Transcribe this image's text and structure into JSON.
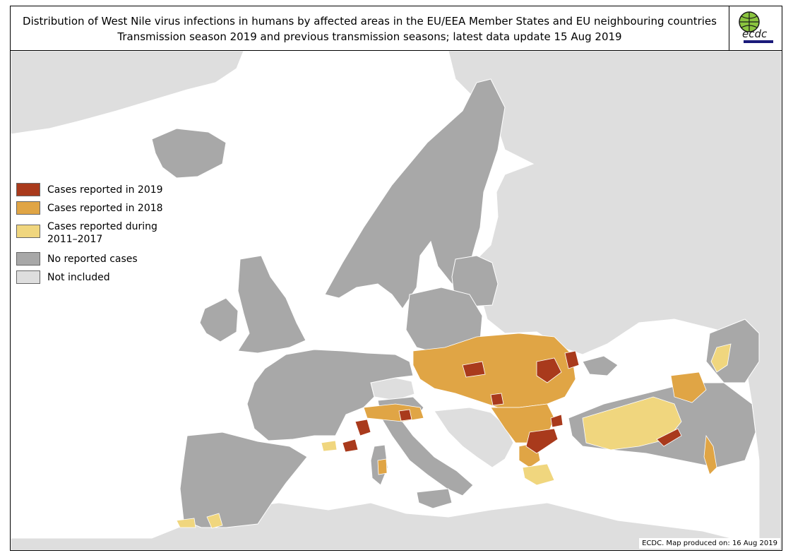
{
  "header": {
    "title_line1": "Distribution of West Nile virus infections in humans by affected areas in the EU/EEA Member States and EU neighbouring countries",
    "title_line2": "Transmission season 2019 and previous transmission seasons; latest data update 15 Aug 2019"
  },
  "logo": {
    "text": "ecdc",
    "icon": "ecdc-globe-logo"
  },
  "legend": {
    "items": [
      {
        "label": "Cases reported in 2019",
        "color": "#a93a1c"
      },
      {
        "label": "Cases reported in 2018",
        "color": "#e0a545"
      },
      {
        "label": "Cases reported during\n2011–2017",
        "color": "#f0d67e"
      },
      {
        "label": "No reported cases",
        "color": "#a8a8a8"
      },
      {
        "label": "Not included",
        "color": "#dedede"
      }
    ]
  },
  "credit": "ECDC. Map produced on: 16 Aug 2019",
  "colors": {
    "sea": "#ffffff",
    "not_included": "#dedede",
    "no_cases": "#a8a8a8",
    "cases_2019": "#a93a1c",
    "cases_2018": "#e0a545",
    "cases_2011_2017": "#f0d67e",
    "border": "#ffffff"
  }
}
